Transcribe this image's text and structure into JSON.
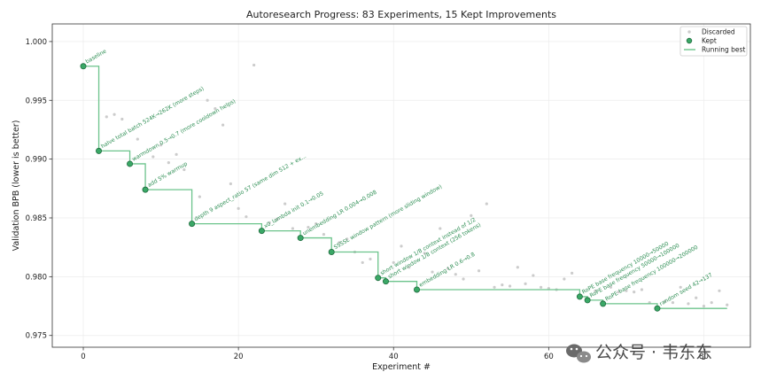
{
  "chart_data": {
    "type": "scatter",
    "title": "Autoresearch Progress: 83 Experiments, 15 Kept Improvements",
    "xlabel": "Experiment #",
    "ylabel": "Validation BPB (lower is better)",
    "xlim": [
      -4,
      86
    ],
    "ylim": [
      0.974,
      1.0015
    ],
    "xticks": [
      0,
      20,
      40,
      60,
      80
    ],
    "yticks": [
      0.975,
      0.98,
      0.985,
      0.99,
      0.995,
      1.0
    ],
    "xtick_labels": [
      "0",
      "20",
      "40",
      "60",
      "80"
    ],
    "ytick_labels": [
      "0.975",
      "0.980",
      "0.985",
      "0.990",
      "0.995",
      "1.000"
    ],
    "grid": true,
    "legend": {
      "placement": "top-right",
      "entries": [
        {
          "key": "discarded",
          "label": "Discarded"
        },
        {
          "key": "kept",
          "label": "Kept"
        },
        {
          "key": "running",
          "label": "Running best"
        }
      ]
    },
    "colors": {
      "kept_fill": "#3aa866",
      "kept_edge": "#1f6b3e",
      "running": "#6cc48c",
      "discarded": "#cccccc",
      "label": "#2f8f55"
    },
    "kept": [
      {
        "x": 0,
        "y": 0.9979,
        "label": "baseline"
      },
      {
        "x": 2,
        "y": 0.9907,
        "label": "halve total batch 524K→262K (more steps)"
      },
      {
        "x": 6,
        "y": 0.9896,
        "label": "warmdown 0.5→0.7 (more cooldown helps)"
      },
      {
        "x": 8,
        "y": 0.9874,
        "label": "add 5% warmup"
      },
      {
        "x": 14,
        "y": 0.9845,
        "label": "depth 9 aspect_ratio 57 (same dim 512 + ex..."
      },
      {
        "x": 23,
        "y": 0.9839,
        "label": "x0_lambda init 0.1→0.05"
      },
      {
        "x": 28,
        "y": 0.9833,
        "label": "unembedding LR 0.004→0.008"
      },
      {
        "x": 32,
        "y": 0.9821,
        "label": "SSSSL window pattern (more sliding window)"
      },
      {
        "x": 38,
        "y": 0.9799,
        "label": "short window 1/8 context instead of 1/2"
      },
      {
        "x": 39,
        "y": 0.9796,
        "label": "short window 1/8 context (256 tokens)"
      },
      {
        "x": 43,
        "y": 0.9789,
        "label": "embedding LR 0.6→0.8"
      },
      {
        "x": 64,
        "y": 0.9783,
        "label": "RoPE base frequency 10000→50000"
      },
      {
        "x": 65,
        "y": 0.978,
        "label": "RoPE base frequency 50000→100000"
      },
      {
        "x": 67,
        "y": 0.9777,
        "label": "RoPE base frequency 100000→200000"
      },
      {
        "x": 74,
        "y": 0.9773,
        "label": "random seed 42→137"
      }
    ],
    "discarded": [
      [
        3,
        0.9936
      ],
      [
        4,
        0.9938
      ],
      [
        5,
        0.9934
      ],
      [
        7,
        0.9917
      ],
      [
        9,
        0.9902
      ],
      [
        10,
        0.9912
      ],
      [
        11,
        0.9897
      ],
      [
        12,
        0.9904
      ],
      [
        13,
        0.9891
      ],
      [
        15,
        0.9868
      ],
      [
        16,
        0.995
      ],
      [
        17,
        0.9943
      ],
      [
        18,
        0.9929
      ],
      [
        19,
        0.9879
      ],
      [
        20,
        0.9858
      ],
      [
        21,
        0.9851
      ],
      [
        22,
        0.998
      ],
      [
        24,
        0.9846
      ],
      [
        25,
        0.9849
      ],
      [
        26,
        0.9862
      ],
      [
        27,
        0.9841
      ],
      [
        29,
        0.9842
      ],
      [
        30,
        0.9845
      ],
      [
        31,
        0.9836
      ],
      [
        33,
        0.9829
      ],
      [
        34,
        0.9832
      ],
      [
        35,
        0.9821
      ],
      [
        36,
        0.9812
      ],
      [
        37,
        0.9815
      ],
      [
        40,
        0.9812
      ],
      [
        41,
        0.9826
      ],
      [
        42,
        0.9808
      ],
      [
        44,
        0.982
      ],
      [
        45,
        0.9804
      ],
      [
        46,
        0.9841
      ],
      [
        47,
        0.9807
      ],
      [
        48,
        0.9802
      ],
      [
        49,
        0.9798
      ],
      [
        50,
        0.9852
      ],
      [
        51,
        0.9805
      ],
      [
        52,
        0.9862
      ],
      [
        53,
        0.9791
      ],
      [
        54,
        0.9793
      ],
      [
        55,
        0.9792
      ],
      [
        56,
        0.9808
      ],
      [
        57,
        0.9794
      ],
      [
        58,
        0.9801
      ],
      [
        59,
        0.9791
      ],
      [
        60,
        0.979
      ],
      [
        61,
        0.9789
      ],
      [
        62,
        0.9798
      ],
      [
        63,
        0.9803
      ],
      [
        66,
        0.9788
      ],
      [
        68,
        0.9791
      ],
      [
        69,
        0.9787
      ],
      [
        70,
        0.9788
      ],
      [
        71,
        0.9787
      ],
      [
        72,
        0.9789
      ],
      [
        73,
        0.9778
      ],
      [
        75,
        0.9779
      ],
      [
        76,
        0.9778
      ],
      [
        77,
        0.9791
      ],
      [
        78,
        0.9777
      ],
      [
        79,
        0.9782
      ],
      [
        80,
        0.9775
      ],
      [
        81,
        0.9778
      ],
      [
        82,
        0.9788
      ],
      [
        83,
        0.9776
      ]
    ]
  },
  "watermark": {
    "text": "公众号 · 韦东东",
    "icon": "wechat-icon"
  }
}
